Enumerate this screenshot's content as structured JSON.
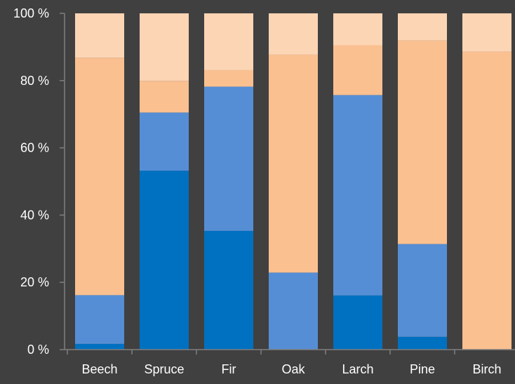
{
  "chart_data": {
    "type": "bar",
    "stacked": true,
    "categories": [
      "Beech",
      "Spruce",
      "Fir",
      "Oak",
      "Larch",
      "Pine",
      "Birch"
    ],
    "series": [
      {
        "color": "#0070C0",
        "values": [
          1.7,
          53.2,
          35.3,
          0,
          16.1,
          3.8,
          0
        ]
      },
      {
        "color": "#558ED5",
        "values": [
          14.5,
          17.3,
          42.9,
          22.9,
          59.6,
          27.6,
          0
        ]
      },
      {
        "color": "#FAC090",
        "values": [
          70.6,
          9.4,
          4.9,
          64.8,
          14.8,
          60.5,
          88.6
        ]
      },
      {
        "color": "#FCD5B5",
        "values": [
          13.2,
          20.1,
          16.9,
          12.3,
          9.5,
          8.1,
          11.4
        ]
      }
    ],
    "y_ticks": [
      "0 %",
      "20 %",
      "40 %",
      "60 %",
      "80 %",
      "100 %"
    ],
    "ylim": [
      0,
      100
    ],
    "grid": false,
    "legend": "none",
    "background_color": "#404040",
    "axis_color": "#7f7f7f",
    "text_color": "#ffffff"
  }
}
